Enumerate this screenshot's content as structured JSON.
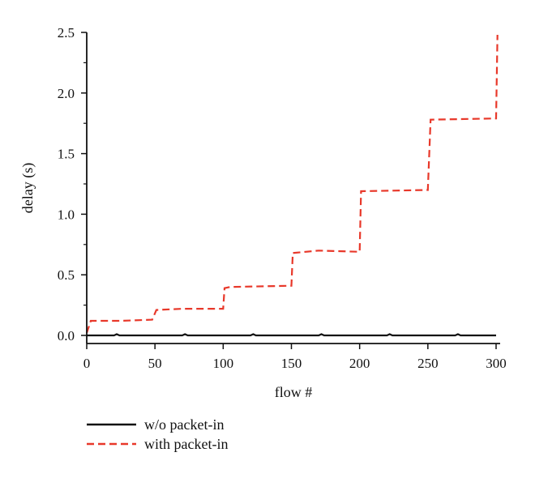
{
  "chart_data": {
    "type": "line",
    "xlabel": "flow #",
    "ylabel": "delay (s)",
    "xlim": [
      0,
      300
    ],
    "ylim": [
      0,
      2.5
    ],
    "xticks": [
      "0",
      "50",
      "100",
      "150",
      "200",
      "250",
      "300"
    ],
    "yticks": [
      "0.0",
      "0.5",
      "1.0",
      "1.5",
      "2.0",
      "2.5"
    ],
    "grid": false,
    "legend_position": "bottom-left",
    "series": [
      {
        "name": "w/o packet-in",
        "color": "#111111",
        "style": "solid",
        "x": [
          0,
          20,
          22,
          24,
          70,
          72,
          74,
          120,
          122,
          124,
          170,
          172,
          174,
          220,
          222,
          224,
          270,
          272,
          274,
          300
        ],
        "y": [
          0.0,
          0.0,
          0.01,
          0.0,
          0.0,
          0.01,
          0.0,
          0.0,
          0.01,
          0.0,
          0.0,
          0.01,
          0.0,
          0.0,
          0.01,
          0.0,
          0.0,
          0.01,
          0.0,
          0.0
        ]
      },
      {
        "name": "with packet-in",
        "color": "#e8382a",
        "style": "dashed",
        "x": [
          0,
          3,
          25,
          48,
          51,
          70,
          100,
          101,
          105,
          150,
          151,
          170,
          200,
          201,
          250,
          252,
          300,
          301
        ],
        "y": [
          0.02,
          0.12,
          0.12,
          0.13,
          0.21,
          0.22,
          0.22,
          0.39,
          0.4,
          0.41,
          0.68,
          0.7,
          0.69,
          1.19,
          1.2,
          1.78,
          1.79,
          2.48
        ]
      }
    ]
  }
}
